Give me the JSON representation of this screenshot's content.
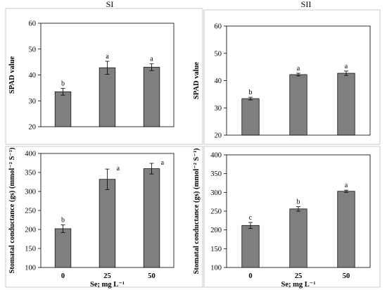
{
  "page_titles": [
    "SI",
    "SII"
  ],
  "x_axis_label": "Se; mg L⁻¹",
  "colors": {
    "bar": "#7f7f7f",
    "bar_edge": "#000000",
    "axis": "#000000"
  },
  "chart_data": [
    {
      "id": "spad_si",
      "type": "bar",
      "title": "SI",
      "categories": [
        "0",
        "25",
        "50"
      ],
      "values": [
        33.5,
        42.8,
        43.0
      ],
      "errors": [
        1.3,
        2.5,
        1.3
      ],
      "letters": [
        "b",
        "a",
        "a"
      ],
      "ylabel": "SPAD value",
      "xlabel": "",
      "ylim": [
        20,
        60
      ],
      "yticks": [
        20,
        30,
        40,
        50,
        60
      ],
      "show_xticklabels": false
    },
    {
      "id": "spad_sii",
      "type": "bar",
      "title": "SII",
      "categories": [
        "0",
        "25",
        "50"
      ],
      "values": [
        33.4,
        42.2,
        42.7
      ],
      "errors": [
        0.5,
        0.5,
        0.8
      ],
      "letters": [
        "b",
        "a",
        "a"
      ],
      "ylabel": "SPAD value",
      "xlabel": "",
      "ylim": [
        20,
        60
      ],
      "yticks": [
        20,
        30,
        40,
        50,
        60
      ],
      "show_xticklabels": false
    },
    {
      "id": "gs_si",
      "type": "bar",
      "title": "",
      "categories": [
        "0",
        "25",
        "50"
      ],
      "values": [
        202,
        332,
        360
      ],
      "errors": [
        10,
        27,
        14
      ],
      "letters": [
        "b",
        "a",
        "a"
      ],
      "ylabel": "Stomatal conductance (gs) (mmol⁻² S⁻¹)",
      "xlabel": "Se; mg L⁻¹",
      "ylim": [
        100,
        400
      ],
      "yticks": [
        100,
        150,
        200,
        250,
        300,
        350,
        400
      ],
      "show_xticklabels": true
    },
    {
      "id": "gs_sii",
      "type": "bar",
      "title": "",
      "categories": [
        "0",
        "25",
        "50"
      ],
      "values": [
        212,
        256,
        303
      ],
      "errors": [
        8,
        6,
        3
      ],
      "letters": [
        "c",
        "b",
        "a"
      ],
      "ylabel": "Stomatal conductance (gs) (mmol⁻² S⁻¹)",
      "xlabel": "Se; mg L⁻¹",
      "ylim": [
        100,
        400
      ],
      "yticks": [
        100,
        150,
        200,
        250,
        300,
        350,
        400
      ],
      "show_xticklabels": true
    }
  ]
}
